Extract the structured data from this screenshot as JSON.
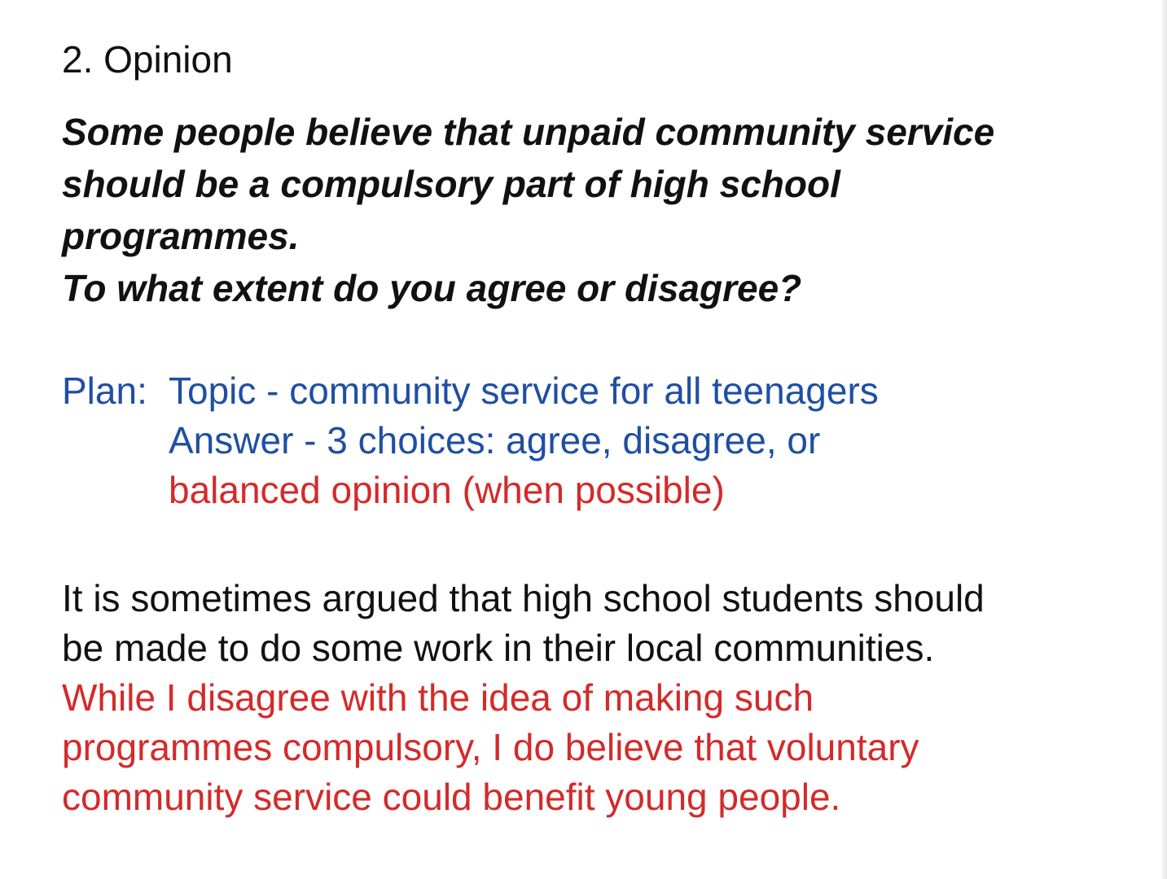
{
  "heading": "2. Opinion",
  "question": {
    "lines": [
      "Some people believe that unpaid community service",
      "should be a compulsory part of high school",
      "programmes.",
      "To what extent do you agree or disagree?"
    ]
  },
  "plan": {
    "label": "Plan:",
    "line1": "Topic - community service for all teenagers",
    "line2": "Answer - 3 choices: agree, disagree, or",
    "line3": "balanced opinion (when possible)"
  },
  "introduction": {
    "black_lines": [
      "It is sometimes argued that high school students should",
      "be made to do some work in their local communities."
    ],
    "red_lines": [
      "While I disagree with the idea of making such",
      "programmes compulsory, I do believe that voluntary",
      "community service could benefit young people."
    ]
  },
  "colors": {
    "text": "#111111",
    "plan_blue": "#1f4fa3",
    "highlight_red": "#d42a2a"
  }
}
